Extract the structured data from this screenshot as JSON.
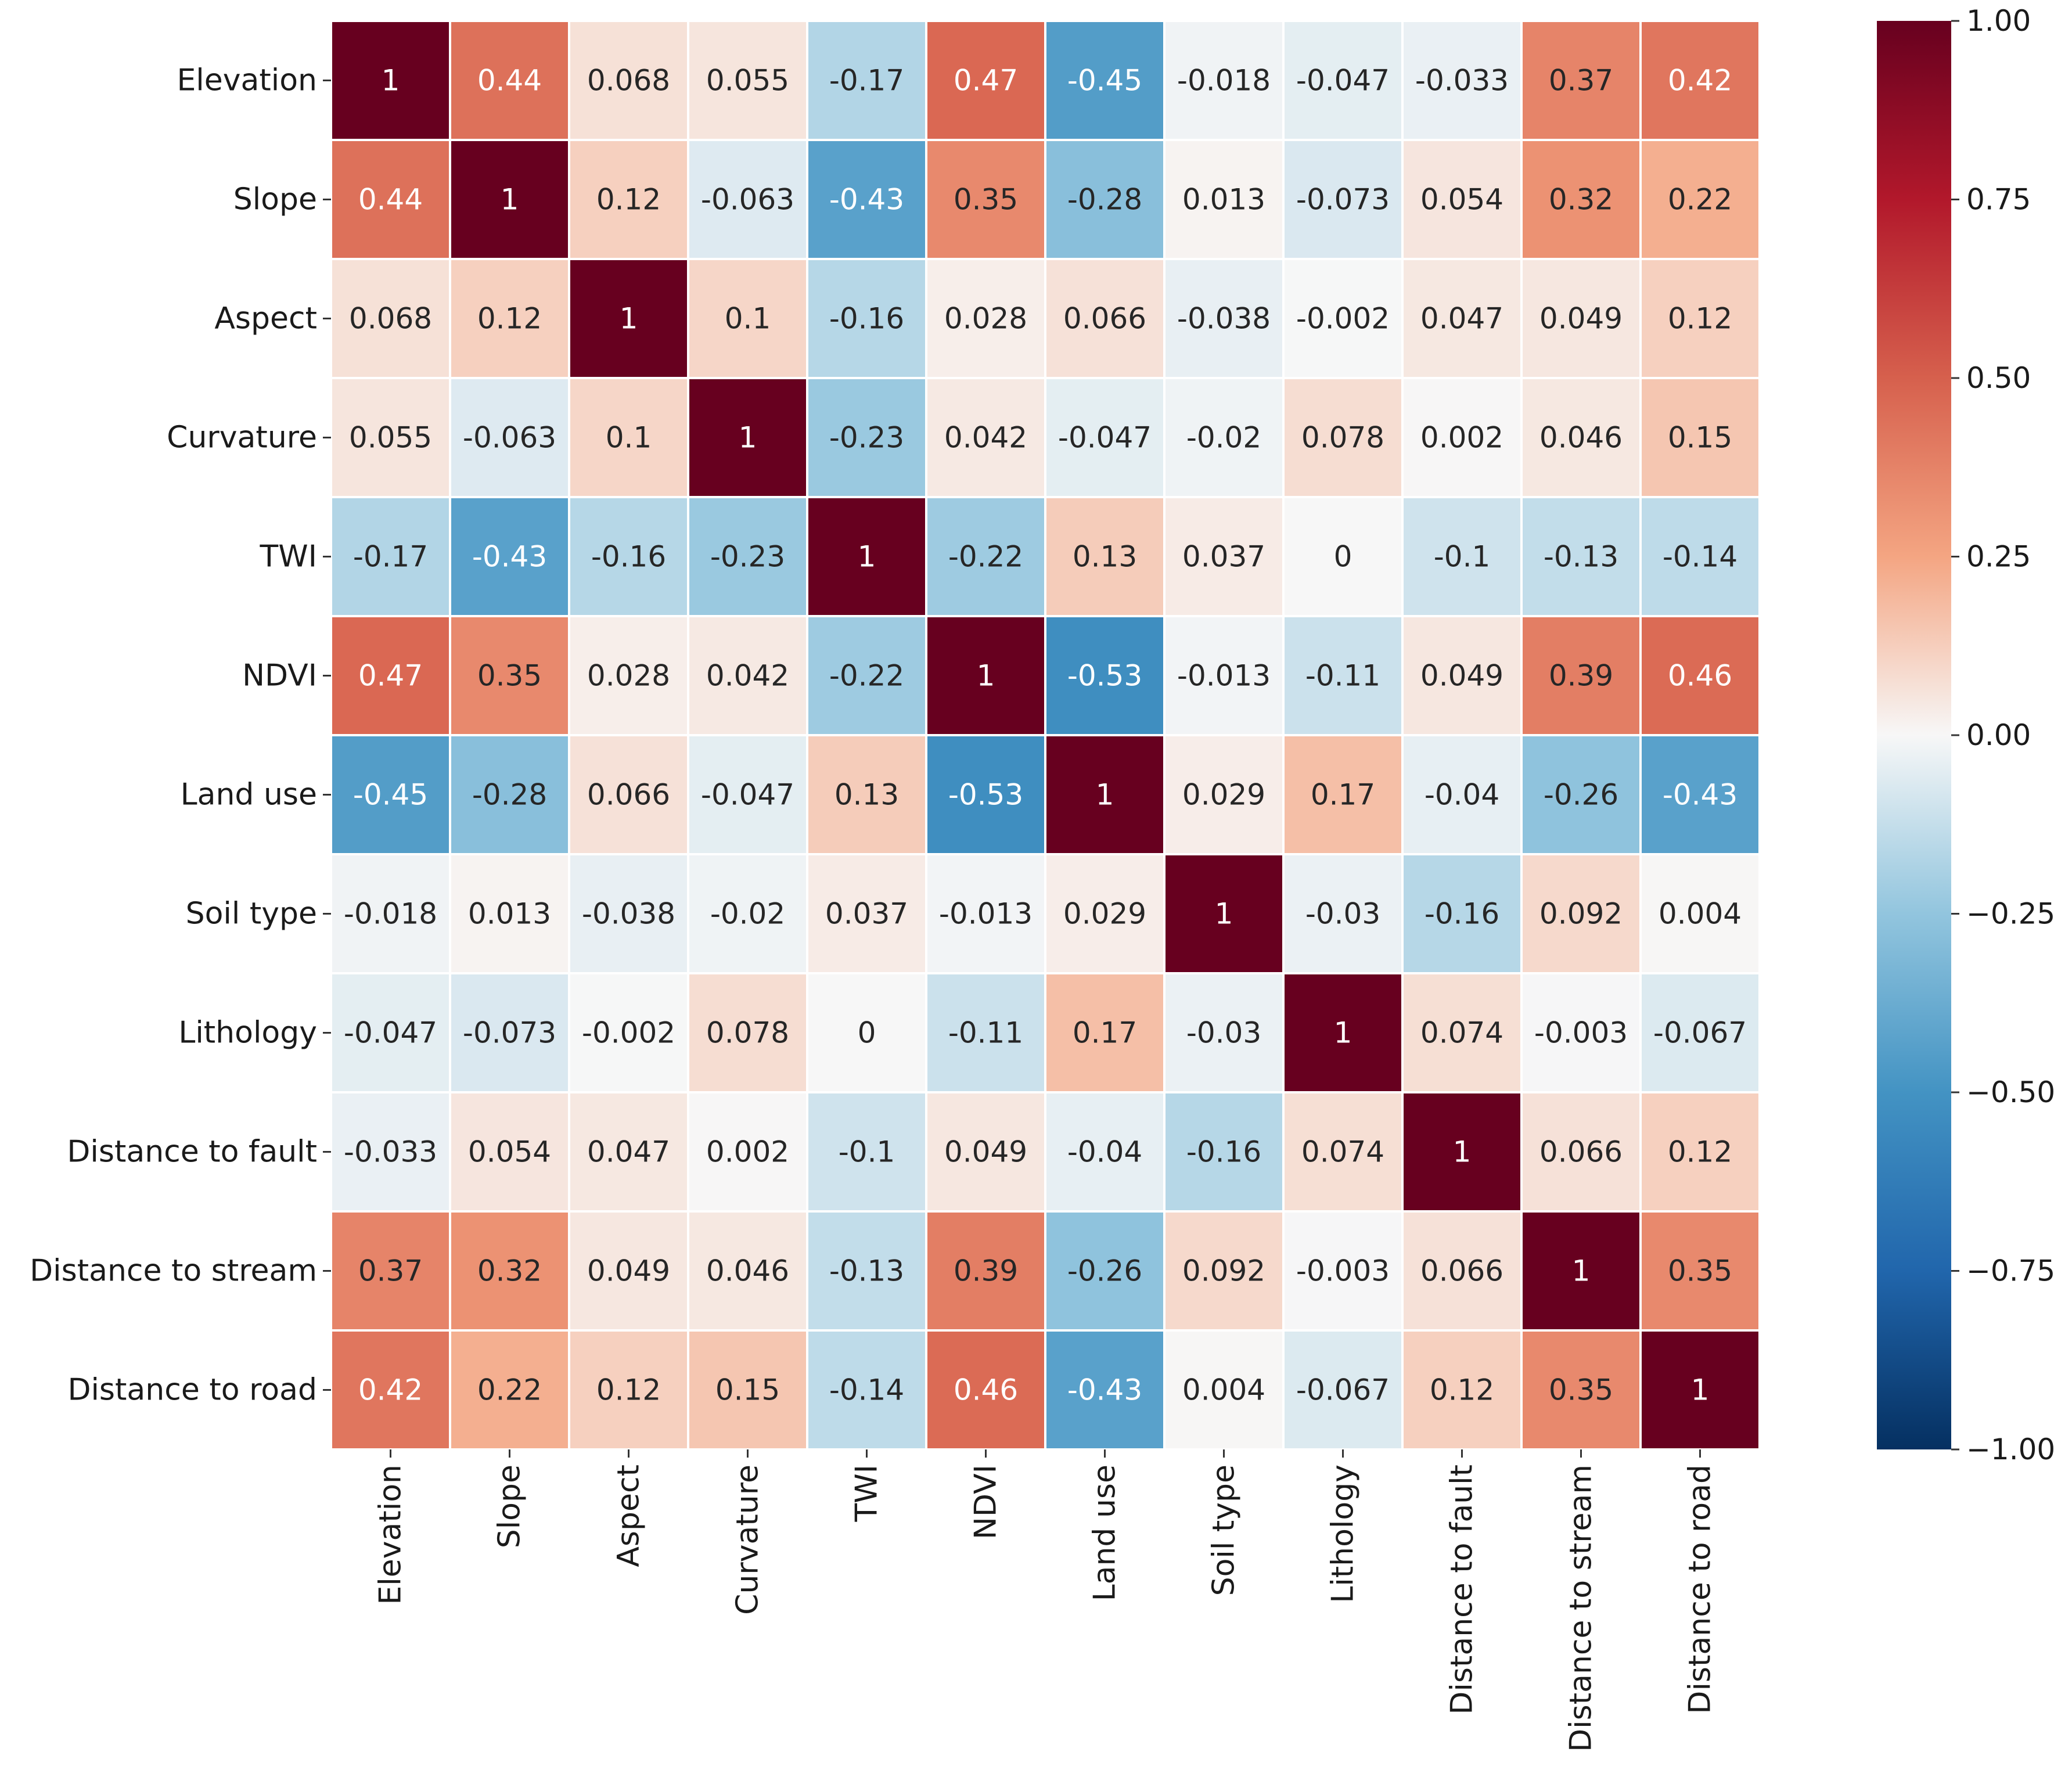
{
  "chart_data": {
    "type": "heatmap",
    "title": "",
    "xlabel": "",
    "ylabel": "",
    "categories": [
      "Elevation",
      "Slope",
      "Aspect",
      "Curvature",
      "TWI",
      "NDVI",
      "Land use",
      "Soil type",
      "Lithology",
      "Distance to fault",
      "Distance to stream",
      "Distance to road"
    ],
    "values": [
      [
        1,
        0.44,
        0.068,
        0.055,
        -0.17,
        0.47,
        -0.45,
        -0.018,
        -0.047,
        -0.033,
        0.37,
        0.42
      ],
      [
        0.44,
        1,
        0.12,
        -0.063,
        -0.43,
        0.35,
        -0.28,
        0.013,
        -0.073,
        0.054,
        0.32,
        0.22
      ],
      [
        0.068,
        0.12,
        1,
        0.1,
        -0.16,
        0.028,
        0.066,
        -0.038,
        -0.002,
        0.047,
        0.049,
        0.12
      ],
      [
        0.055,
        -0.063,
        0.1,
        1,
        -0.23,
        0.042,
        -0.047,
        -0.02,
        0.078,
        0.002,
        0.046,
        0.15
      ],
      [
        -0.17,
        -0.43,
        -0.16,
        -0.23,
        1,
        -0.22,
        0.13,
        0.037,
        0,
        -0.1,
        -0.13,
        -0.14
      ],
      [
        0.47,
        0.35,
        0.028,
        0.042,
        -0.22,
        1,
        -0.53,
        -0.013,
        -0.11,
        0.049,
        0.39,
        0.46
      ],
      [
        -0.45,
        -0.28,
        0.066,
        -0.047,
        0.13,
        -0.53,
        1,
        0.029,
        0.17,
        -0.04,
        -0.26,
        -0.43
      ],
      [
        -0.018,
        0.013,
        -0.038,
        -0.02,
        0.037,
        -0.013,
        0.029,
        1,
        -0.03,
        -0.16,
        0.092,
        0.004
      ],
      [
        -0.047,
        -0.073,
        -0.002,
        0.078,
        0,
        -0.11,
        0.17,
        -0.03,
        1,
        0.074,
        -0.003,
        -0.067
      ],
      [
        -0.033,
        0.054,
        0.047,
        0.002,
        -0.1,
        0.049,
        -0.04,
        -0.16,
        0.074,
        1,
        0.066,
        0.12
      ],
      [
        0.37,
        0.32,
        0.049,
        0.046,
        -0.13,
        0.39,
        -0.26,
        0.092,
        -0.003,
        0.066,
        1,
        0.35
      ],
      [
        0.42,
        0.22,
        0.12,
        0.15,
        -0.14,
        0.46,
        -0.43,
        0.004,
        -0.067,
        0.12,
        0.35,
        1
      ]
    ],
    "colormap": "RdBu_r",
    "vmin": -1,
    "vmax": 1,
    "colorbar_ticks": [
      "1.00",
      "0.75",
      "0.50",
      "0.25",
      "0.00",
      "−0.25",
      "−0.50",
      "−0.75",
      "−1.00"
    ],
    "colorbar_tick_values": [
      1,
      0.75,
      0.5,
      0.25,
      0,
      -0.25,
      -0.5,
      -0.75,
      -1
    ],
    "colorbar_placement": "right",
    "annotated": true,
    "grid": false
  }
}
